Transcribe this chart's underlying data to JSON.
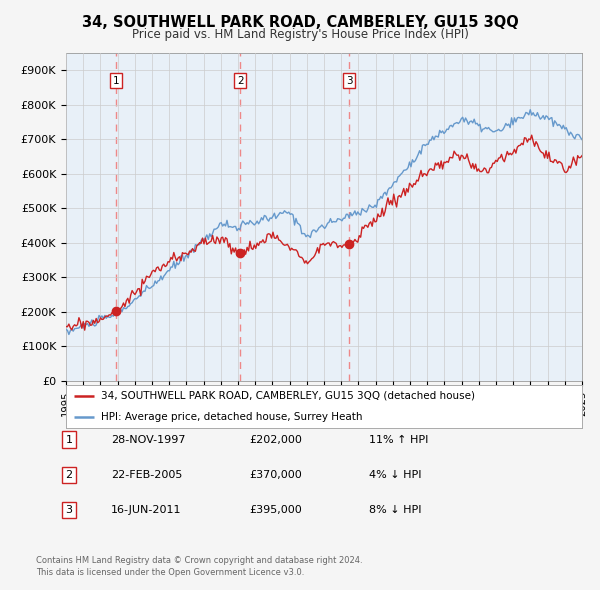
{
  "title": "34, SOUTHWELL PARK ROAD, CAMBERLEY, GU15 3QQ",
  "subtitle": "Price paid vs. HM Land Registry's House Price Index (HPI)",
  "ylim": [
    0,
    950000
  ],
  "yticks": [
    0,
    100000,
    200000,
    300000,
    400000,
    500000,
    600000,
    700000,
    800000,
    900000
  ],
  "ytick_labels": [
    "£0",
    "£100K",
    "£200K",
    "£300K",
    "£400K",
    "£500K",
    "£600K",
    "£700K",
    "£800K",
    "£900K"
  ],
  "hpi_color": "#6699cc",
  "price_color": "#cc2222",
  "vline_color": "#ee8888",
  "dot_color": "#cc2222",
  "grid_color": "#cccccc",
  "plot_bg_color": "#e8f0f8",
  "fig_bg_color": "#f5f5f5",
  "transactions": [
    {
      "label": "1",
      "date": "28-NOV-1997",
      "price": 202000,
      "pct": "11%",
      "dir": "↑",
      "year": 1997.92
    },
    {
      "label": "2",
      "date": "22-FEB-2005",
      "price": 370000,
      "pct": "4%",
      "dir": "↓",
      "year": 2005.13
    },
    {
      "label": "3",
      "date": "16-JUN-2011",
      "price": 395000,
      "pct": "8%",
      "dir": "↓",
      "year": 2011.46
    }
  ],
  "legend_line1": "34, SOUTHWELL PARK ROAD, CAMBERLEY, GU15 3QQ (detached house)",
  "legend_line2": "HPI: Average price, detached house, Surrey Heath",
  "footer1": "Contains HM Land Registry data © Crown copyright and database right 2024.",
  "footer2": "This data is licensed under the Open Government Licence v3.0.",
  "x_start_year": 1995,
  "x_end_year": 2025
}
